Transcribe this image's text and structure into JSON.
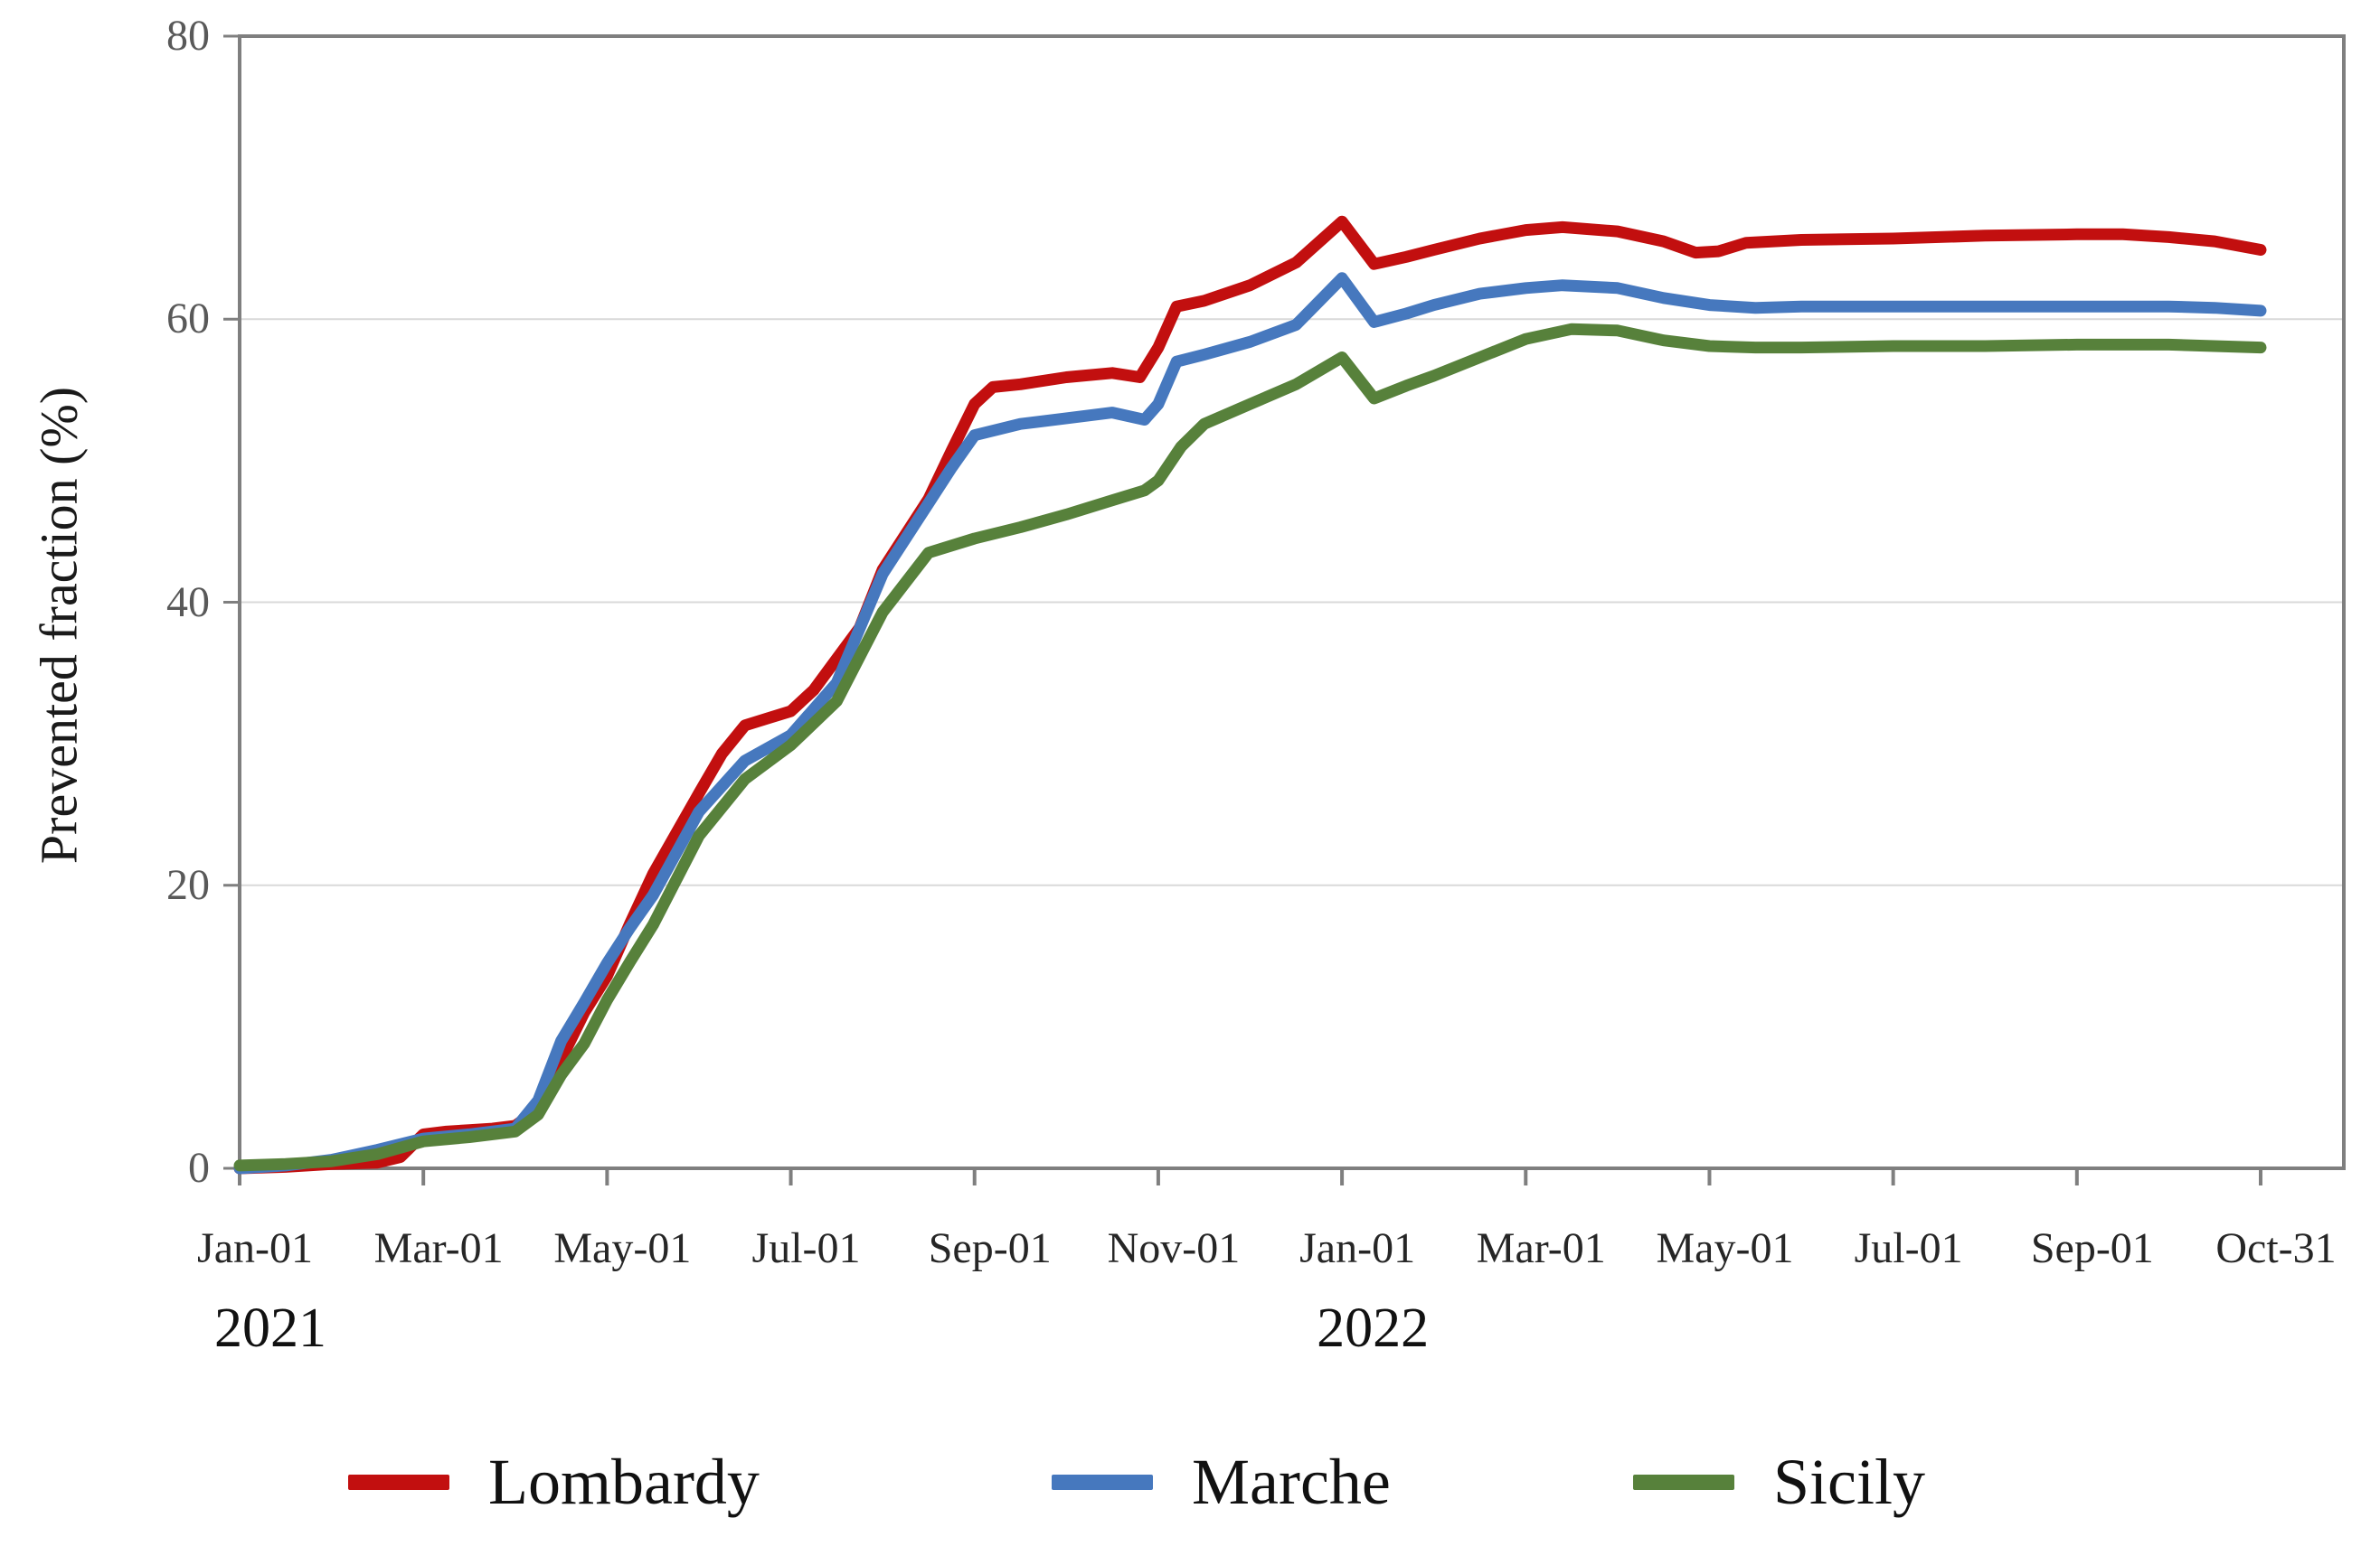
{
  "chart_data": {
    "type": "line",
    "title": "",
    "xlabel": "",
    "ylabel": "Prevented fraction (%)",
    "ylim": [
      0,
      80
    ],
    "yticks": [
      0,
      20,
      40,
      60,
      80
    ],
    "grid": "horizontal gridlines at 20, 40, 60",
    "legend_position": "bottom",
    "x_unit": "months since 2021-01-01 (t=0 is Jan-01-2021, t=22 is Oct-31-2022)",
    "x_ticks": [
      {
        "label": "Jan-01",
        "t": 0
      },
      {
        "label": "Mar-01",
        "t": 2
      },
      {
        "label": "May-01",
        "t": 4
      },
      {
        "label": "Jul-01",
        "t": 6
      },
      {
        "label": "Sep-01",
        "t": 8
      },
      {
        "label": "Nov-01",
        "t": 10
      },
      {
        "label": "Jan-01",
        "t": 12
      },
      {
        "label": "Mar-01",
        "t": 14
      },
      {
        "label": "May-01",
        "t": 16
      },
      {
        "label": "Jul-01",
        "t": 18
      },
      {
        "label": "Sep-01",
        "t": 20
      },
      {
        "label": "Oct-31",
        "t": 22
      }
    ],
    "year_labels": [
      {
        "label": "2021",
        "t": 0
      },
      {
        "label": "2022",
        "t": 12
      }
    ],
    "axis_color": "#7f7f7f",
    "gridline_color": "#d9d9d9",
    "series": [
      {
        "name": "Lombardy",
        "color": "#c20f0f",
        "points": [
          [
            0,
            0
          ],
          [
            0.5,
            0.1
          ],
          [
            1,
            0.3
          ],
          [
            1.5,
            0.4
          ],
          [
            1.75,
            0.8
          ],
          [
            2,
            2.4
          ],
          [
            2.25,
            2.6
          ],
          [
            2.5,
            2.7
          ],
          [
            2.75,
            2.8
          ],
          [
            3,
            3.0
          ],
          [
            3.25,
            4.2
          ],
          [
            3.5,
            7.7
          ],
          [
            3.75,
            11.0
          ],
          [
            4,
            13.6
          ],
          [
            4.25,
            17.3
          ],
          [
            4.5,
            20.8
          ],
          [
            5,
            26.5
          ],
          [
            5.25,
            29.3
          ],
          [
            5.5,
            31.3
          ],
          [
            5.75,
            31.8
          ],
          [
            6,
            32.3
          ],
          [
            6.25,
            33.8
          ],
          [
            6.5,
            36.0
          ],
          [
            6.75,
            38.2
          ],
          [
            7,
            42.3
          ],
          [
            7.5,
            47.3
          ],
          [
            7.75,
            50.7
          ],
          [
            8,
            54.0
          ],
          [
            8.2,
            55.2
          ],
          [
            8.5,
            55.4
          ],
          [
            9,
            55.9
          ],
          [
            9.5,
            56.2
          ],
          [
            9.8,
            55.9
          ],
          [
            10,
            58.0
          ],
          [
            10.2,
            60.9
          ],
          [
            10.5,
            61.3
          ],
          [
            11,
            62.4
          ],
          [
            11.5,
            64.0
          ],
          [
            12,
            66.9
          ],
          [
            12.35,
            63.9
          ],
          [
            12.7,
            64.4
          ],
          [
            13,
            64.9
          ],
          [
            13.5,
            65.7
          ],
          [
            14,
            66.3
          ],
          [
            14.4,
            66.5
          ],
          [
            15,
            66.2
          ],
          [
            15.5,
            65.5
          ],
          [
            15.85,
            64.7
          ],
          [
            16.1,
            64.8
          ],
          [
            16.4,
            65.4
          ],
          [
            17,
            65.6
          ],
          [
            18,
            65.7
          ],
          [
            19,
            65.9
          ],
          [
            20,
            66.0
          ],
          [
            20.5,
            66.0
          ],
          [
            21,
            65.8
          ],
          [
            21.5,
            65.5
          ],
          [
            22,
            64.9
          ]
        ]
      },
      {
        "name": "Marche",
        "color": "#4678be",
        "points": [
          [
            0,
            0
          ],
          [
            0.5,
            0.2
          ],
          [
            1,
            0.6
          ],
          [
            1.5,
            1.3
          ],
          [
            2,
            2.1
          ],
          [
            2.5,
            2.4
          ],
          [
            3,
            2.8
          ],
          [
            3.25,
            4.8
          ],
          [
            3.5,
            9.0
          ],
          [
            3.75,
            11.7
          ],
          [
            4,
            14.5
          ],
          [
            4.25,
            17.0
          ],
          [
            4.5,
            19.3
          ],
          [
            5,
            25.2
          ],
          [
            5.5,
            28.8
          ],
          [
            6,
            30.6
          ],
          [
            6.5,
            34.3
          ],
          [
            7,
            42.0
          ],
          [
            7.5,
            47.0
          ],
          [
            7.75,
            49.5
          ],
          [
            8,
            51.8
          ],
          [
            8.5,
            52.6
          ],
          [
            9,
            53.0
          ],
          [
            9.5,
            53.4
          ],
          [
            9.85,
            52.9
          ],
          [
            10,
            54.0
          ],
          [
            10.2,
            57.0
          ],
          [
            10.5,
            57.5
          ],
          [
            11,
            58.4
          ],
          [
            11.5,
            59.6
          ],
          [
            12,
            62.9
          ],
          [
            12.35,
            59.8
          ],
          [
            12.7,
            60.4
          ],
          [
            13,
            61.0
          ],
          [
            13.5,
            61.8
          ],
          [
            14,
            62.2
          ],
          [
            14.4,
            62.4
          ],
          [
            15,
            62.2
          ],
          [
            15.5,
            61.5
          ],
          [
            16,
            61.0
          ],
          [
            16.5,
            60.8
          ],
          [
            17,
            60.9
          ],
          [
            18,
            60.9
          ],
          [
            19,
            60.9
          ],
          [
            20,
            60.9
          ],
          [
            21,
            60.9
          ],
          [
            21.5,
            60.8
          ],
          [
            22,
            60.6
          ]
        ]
      },
      {
        "name": "Sicily",
        "color": "#57813b",
        "points": [
          [
            0,
            0.2
          ],
          [
            0.5,
            0.3
          ],
          [
            1,
            0.5
          ],
          [
            1.5,
            1.0
          ],
          [
            2,
            1.9
          ],
          [
            2.5,
            2.2
          ],
          [
            3,
            2.6
          ],
          [
            3.25,
            3.8
          ],
          [
            3.5,
            6.6
          ],
          [
            3.75,
            8.8
          ],
          [
            4,
            11.9
          ],
          [
            4.25,
            14.6
          ],
          [
            4.5,
            17.2
          ],
          [
            5,
            23.5
          ],
          [
            5.5,
            27.5
          ],
          [
            6,
            29.9
          ],
          [
            6.5,
            33.0
          ],
          [
            7,
            39.3
          ],
          [
            7.5,
            43.5
          ],
          [
            8,
            44.5
          ],
          [
            8.5,
            45.3
          ],
          [
            9,
            46.2
          ],
          [
            9.5,
            47.2
          ],
          [
            9.85,
            47.9
          ],
          [
            10,
            48.6
          ],
          [
            10.25,
            51.0
          ],
          [
            10.5,
            52.6
          ],
          [
            11,
            54.0
          ],
          [
            11.5,
            55.4
          ],
          [
            12,
            57.3
          ],
          [
            12.35,
            54.4
          ],
          [
            12.7,
            55.3
          ],
          [
            13,
            56.0
          ],
          [
            13.5,
            57.3
          ],
          [
            14,
            58.6
          ],
          [
            14.5,
            59.3
          ],
          [
            15,
            59.2
          ],
          [
            15.5,
            58.5
          ],
          [
            16,
            58.1
          ],
          [
            16.5,
            58.0
          ],
          [
            17,
            58.0
          ],
          [
            18,
            58.1
          ],
          [
            19,
            58.1
          ],
          [
            20,
            58.2
          ],
          [
            21,
            58.2
          ],
          [
            22,
            58.0
          ]
        ]
      }
    ],
    "legend": [
      {
        "label": "Lombardy",
        "color": "#c20f0f"
      },
      {
        "label": "Marche",
        "color": "#4678be"
      },
      {
        "label": "Sicily",
        "color": "#57813b"
      }
    ]
  }
}
